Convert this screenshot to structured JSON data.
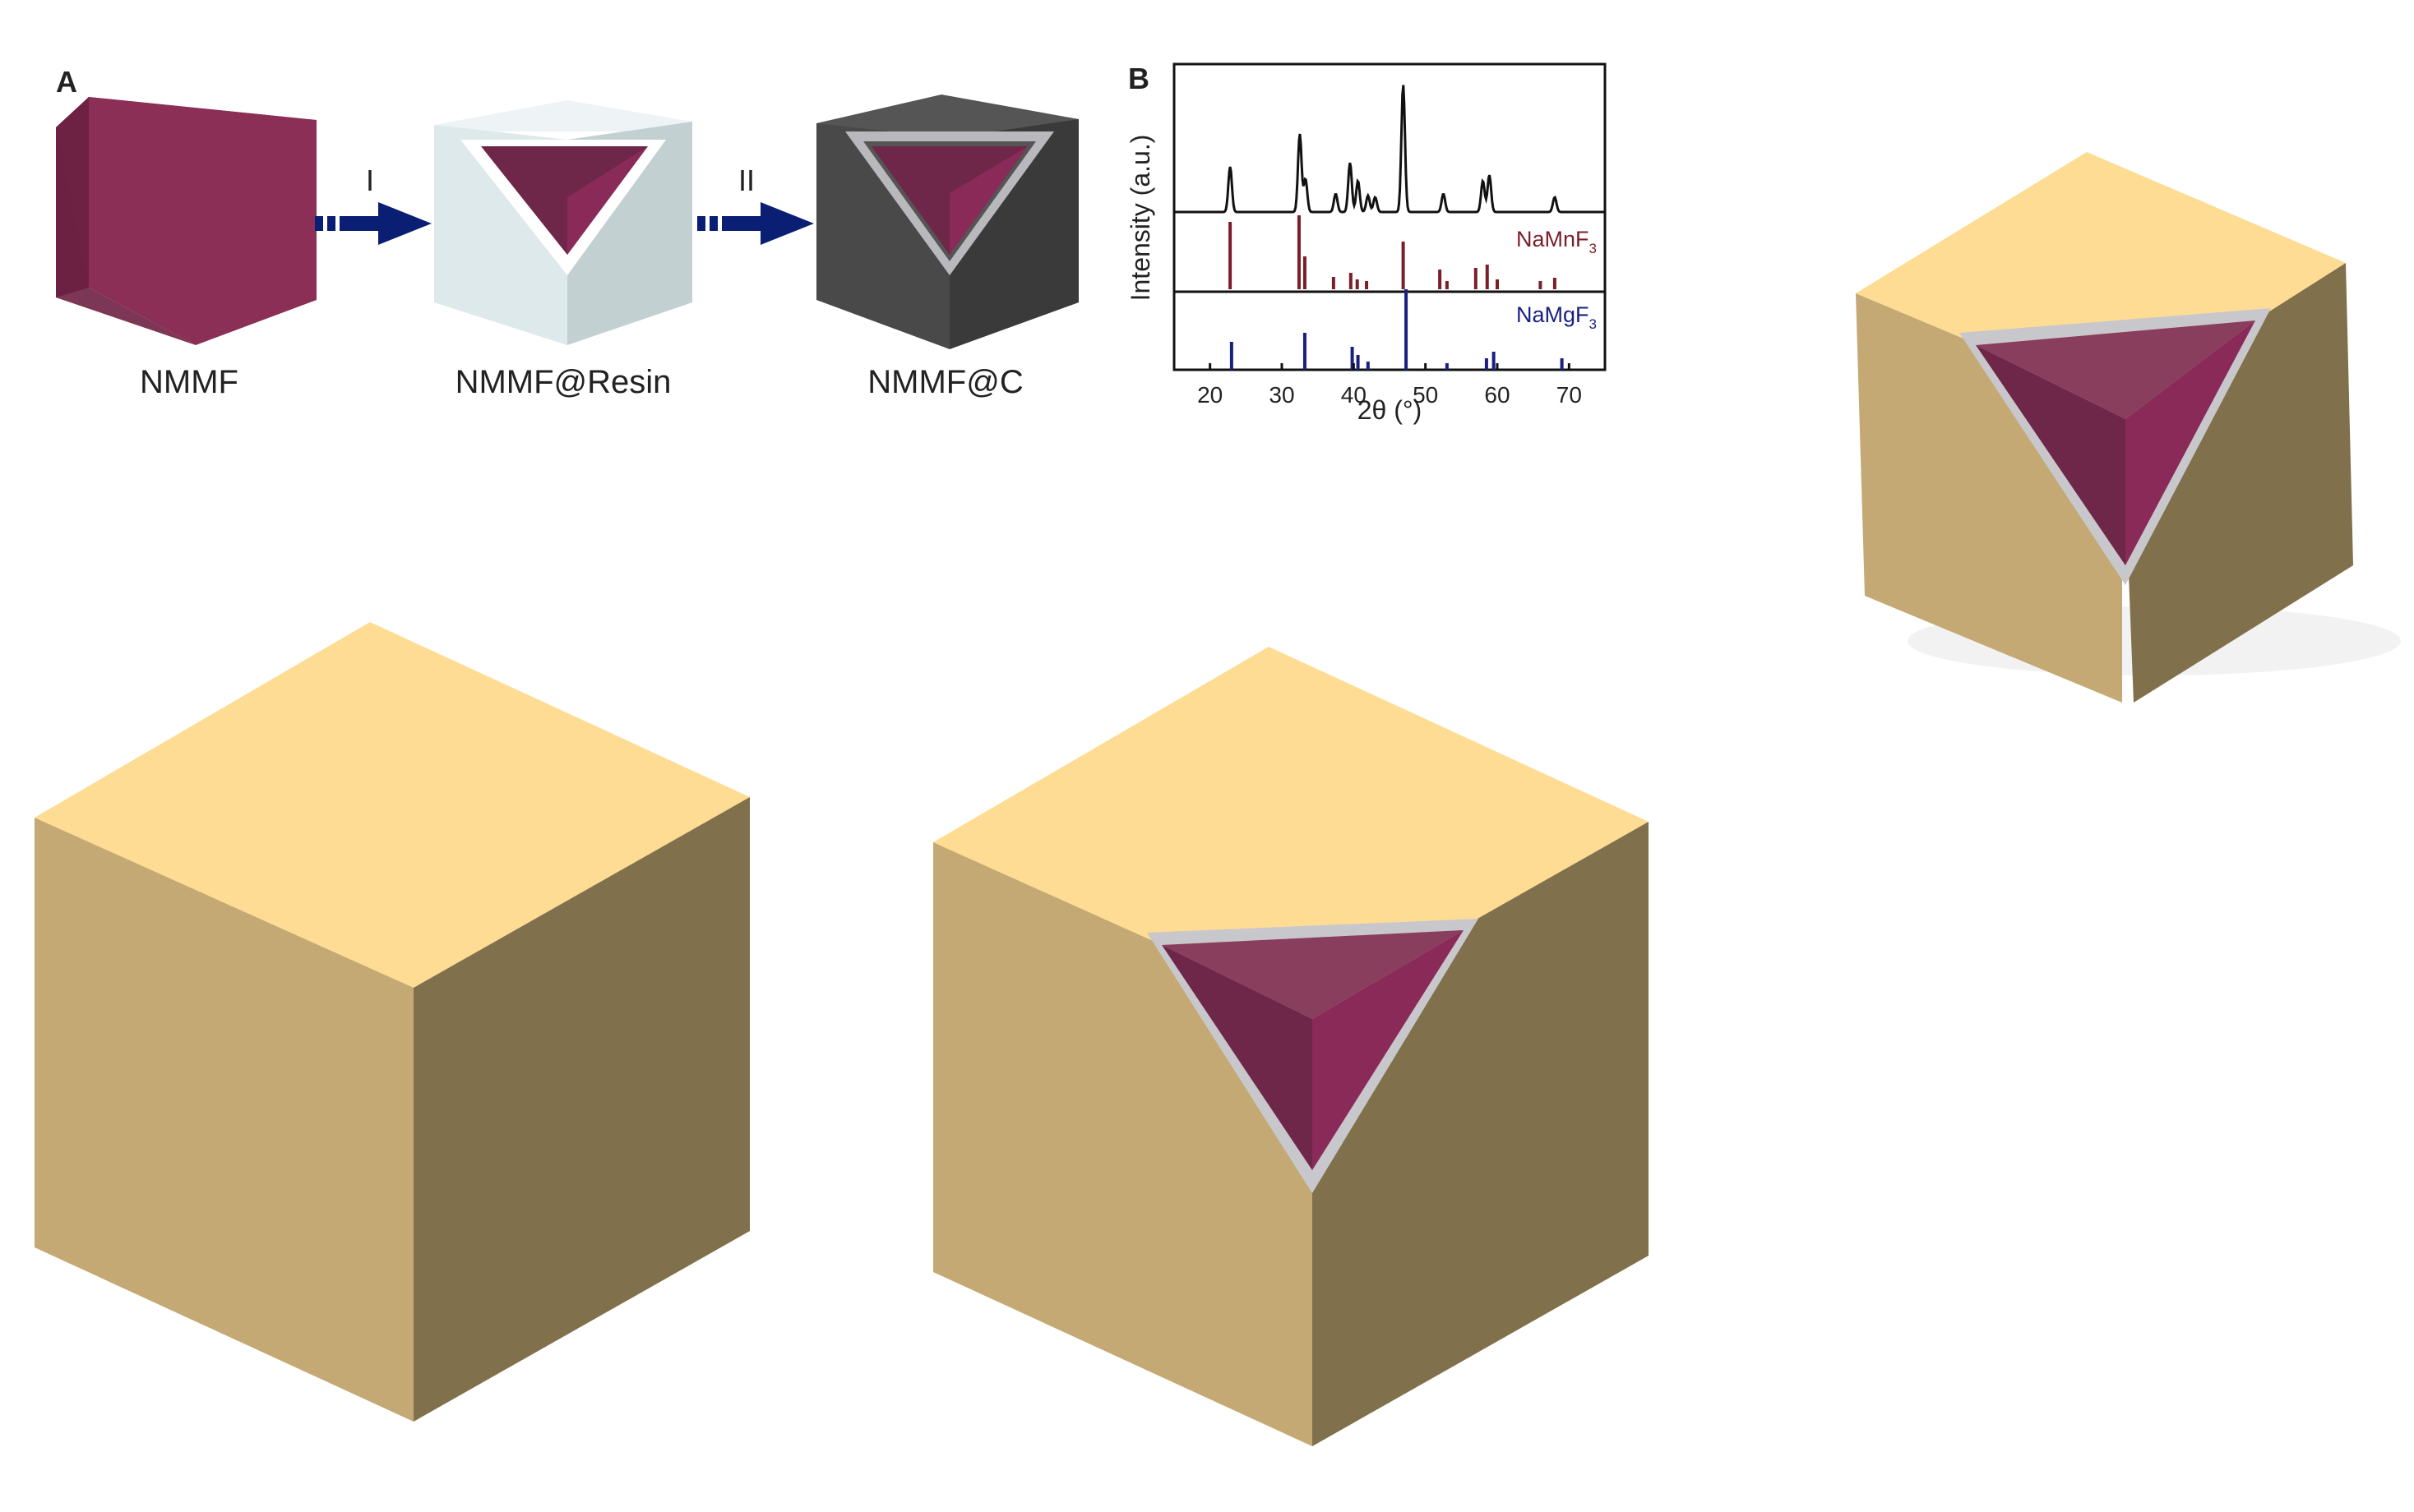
{
  "panel_a": {
    "label": "A",
    "steps": [
      {
        "name": "NMMF"
      },
      {
        "name": "NMMF@Resin"
      },
      {
        "name": "NMMF@C"
      }
    ],
    "arrows": [
      {
        "label": "I"
      },
      {
        "label": "II"
      }
    ]
  },
  "panel_b": {
    "label": "B",
    "ylabel": "Intensity (a.u.)",
    "xlabel": "2θ (°)",
    "x_ticks": [
      "20",
      "30",
      "40",
      "50",
      "60",
      "70"
    ],
    "references": [
      {
        "formula": "NaMnF",
        "subscript": "3"
      },
      {
        "formula": "NaMgF",
        "subscript": "3"
      }
    ]
  },
  "colors": {
    "tan_top": "#fedc93",
    "tan_left": "#c4a974",
    "tan_right": "#80704b",
    "core_left": "#6e2649",
    "core_right": "#8a2a58",
    "core_top": "#8a3e5e",
    "shell": "#c8c8cc",
    "nmmf_front": "#8c2f56",
    "nmmf_side": "#6d2143",
    "nmmf_top": "#a03d66",
    "resin_top": "#eef4f5",
    "resin_left": "#dde9ea",
    "resin_right": "#c3d0d2",
    "carbon_top": "#555555",
    "carbon_left": "#494949",
    "carbon_right": "#3a3a3a",
    "arrow": "#0a1f74",
    "pattern": "#111111",
    "namnf3": "#7a1e2a",
    "namgf3": "#1a2080"
  }
}
